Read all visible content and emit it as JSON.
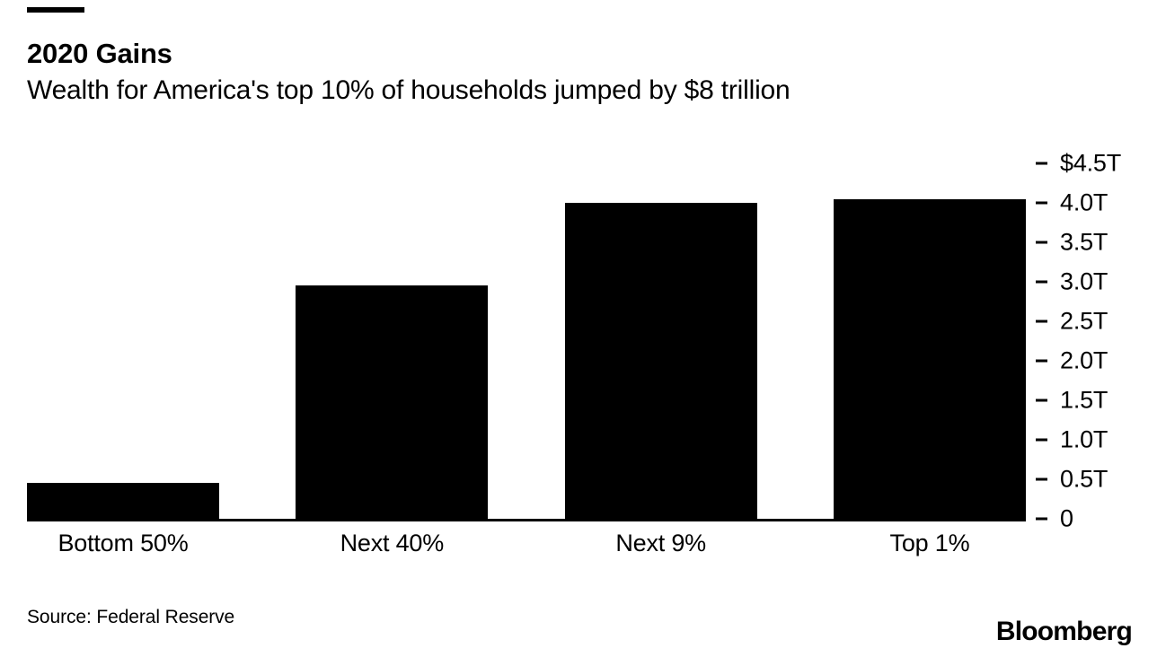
{
  "header": {
    "title": "2020 Gains",
    "subtitle": "Wealth for America's top 10% of households jumped by $8 trillion"
  },
  "footer": {
    "source": "Source: Federal Reserve",
    "brand": "Bloomberg"
  },
  "colors": {
    "bar": "#000000",
    "text": "#000000",
    "background": "#ffffff"
  },
  "chart_data": {
    "type": "bar",
    "title": "2020 Gains",
    "subtitle": "Wealth for America's top 10% of households jumped by $8 trillion",
    "categories": [
      "Bottom 50%",
      "Next 40%",
      "Next 9%",
      "Top 1%"
    ],
    "values": [
      0.46,
      2.95,
      4.0,
      4.05
    ],
    "unit": "trillions of US dollars",
    "ylim": [
      0,
      4.5
    ],
    "yticks": [
      {
        "value": 4.5,
        "label": "$4.5T"
      },
      {
        "value": 4.0,
        "label": "4.0T"
      },
      {
        "value": 3.5,
        "label": "3.5T"
      },
      {
        "value": 3.0,
        "label": "3.0T"
      },
      {
        "value": 2.5,
        "label": "2.5T"
      },
      {
        "value": 2.0,
        "label": "2.0T"
      },
      {
        "value": 1.5,
        "label": "1.5T"
      },
      {
        "value": 1.0,
        "label": "1.0T"
      },
      {
        "value": 0.5,
        "label": "0.5T"
      },
      {
        "value": 0,
        "label": "0"
      }
    ],
    "axis_side": "right",
    "grid": false,
    "legend": false,
    "source": "Source: Federal Reserve"
  }
}
